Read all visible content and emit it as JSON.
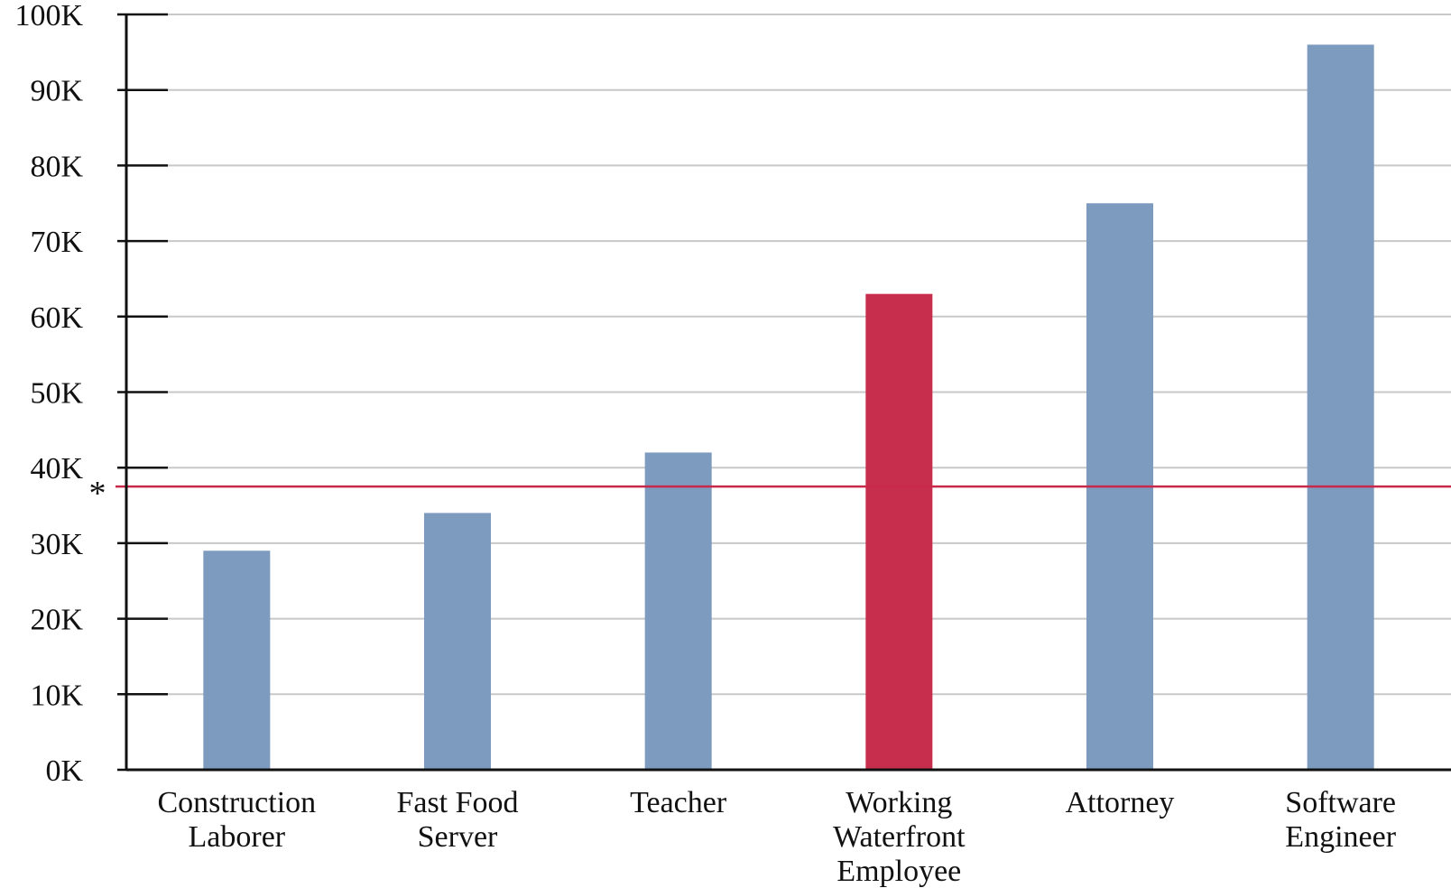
{
  "chart_data": {
    "type": "bar",
    "categories": [
      [
        "Construction",
        "Laborer"
      ],
      [
        "Fast Food",
        "Server"
      ],
      [
        "Teacher"
      ],
      [
        "Working",
        "Waterfront",
        "Employee"
      ],
      [
        "Attorney"
      ],
      [
        "Software",
        "Engineer"
      ]
    ],
    "values": [
      29000,
      34000,
      42000,
      63000,
      75000,
      96000
    ],
    "ylim": [
      0,
      100000
    ],
    "yticks": [
      0,
      10000,
      20000,
      30000,
      40000,
      50000,
      60000,
      70000,
      80000,
      90000,
      100000
    ],
    "ytick_labels": [
      "0K",
      "10K",
      "20K",
      "30K",
      "40K",
      "50K",
      "60K",
      "70K",
      "80K",
      "90K",
      "100K"
    ],
    "grid": true,
    "reference_line": {
      "value": 37500,
      "marker": "*",
      "color": "#c8294a"
    },
    "colors": {
      "default": "#7d9abf",
      "highlight": "#c72d4c",
      "highlight_index": 3,
      "grid": "#c8c8c8",
      "axis": "#111111"
    }
  }
}
